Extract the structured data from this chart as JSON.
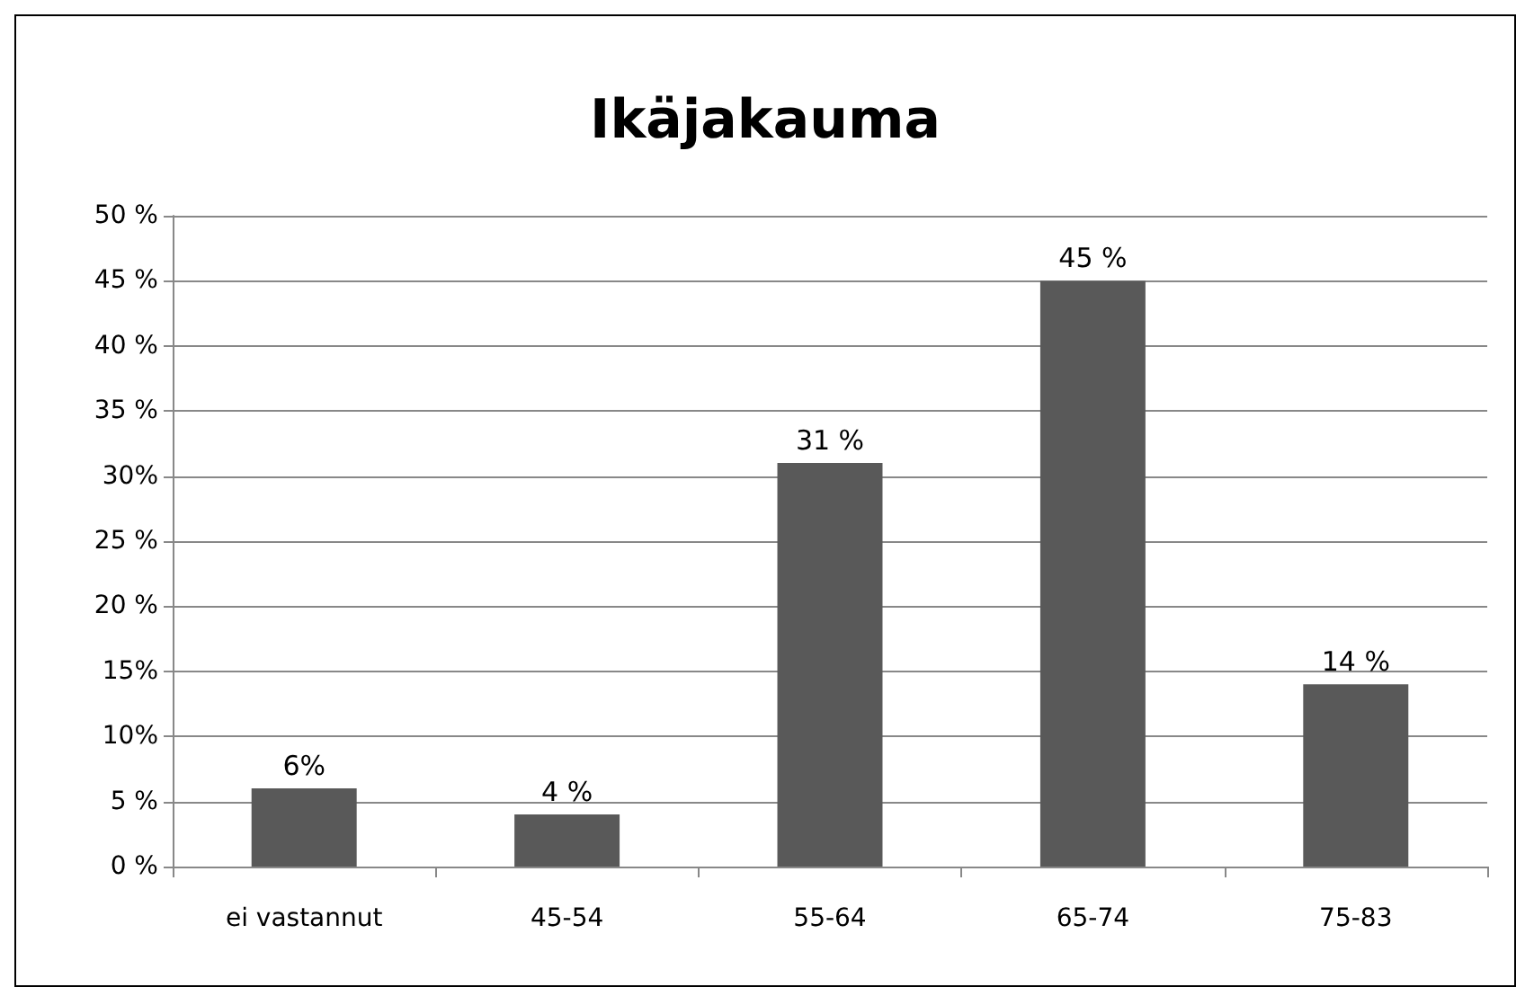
{
  "chart_data": {
    "type": "bar",
    "title": "Ikäjakauma",
    "categories": [
      "ei vastannut",
      "45-54",
      "55-64",
      "65-74",
      "75-83"
    ],
    "values": [
      6,
      4,
      31,
      45,
      14
    ],
    "color": "#595959",
    "value_labels": [
      "6%",
      "4 %",
      "31 %",
      "45 %",
      "14 %"
    ],
    "ylim": [
      0,
      50
    ],
    "yticks": [
      {
        "value": 0,
        "label": "0 %"
      },
      {
        "value": 5,
        "label": "5 %"
      },
      {
        "value": 10,
        "label": "10%"
      },
      {
        "value": 15,
        "label": "15%"
      },
      {
        "value": 20,
        "label": "20 %"
      },
      {
        "value": 25,
        "label": "25 %"
      },
      {
        "value": 30,
        "label": "30%"
      },
      {
        "value": 35,
        "label": "35 %"
      },
      {
        "value": 40,
        "label": "40 %"
      },
      {
        "value": 45,
        "label": "45 %"
      },
      {
        "value": 50,
        "label": "50 %"
      }
    ],
    "grid": "y"
  }
}
